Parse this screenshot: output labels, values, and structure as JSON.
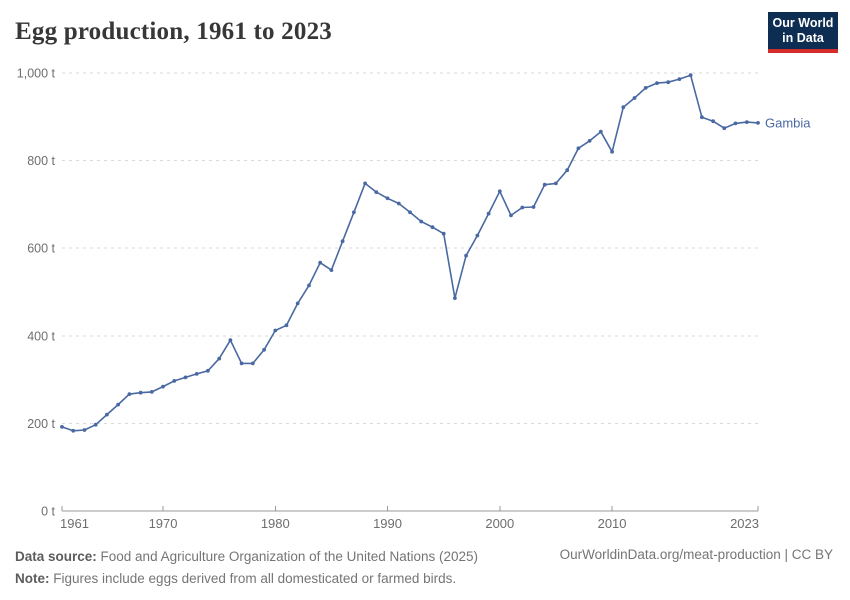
{
  "header": {
    "title": "Egg production, 1961 to 2023",
    "logo": {
      "line1": "Our World",
      "line2": "in Data"
    }
  },
  "chart_data": {
    "type": "line",
    "title": "Egg production, 1961 to 2023",
    "unit": "t",
    "xlim": [
      1961,
      2023
    ],
    "ylim": [
      0,
      1000
    ],
    "yticks": [
      0,
      200,
      400,
      600,
      800,
      1000
    ],
    "ytick_labels": [
      "0 t",
      "200 t",
      "400 t",
      "600 t",
      "800 t",
      "1,000 t"
    ],
    "xticks": [
      1961,
      1970,
      1980,
      1990,
      2000,
      2010,
      2023
    ],
    "xtick_labels": [
      "1961",
      "1970",
      "1980",
      "1990",
      "2000",
      "2010",
      "2023"
    ],
    "grid": "horizontal-dashed",
    "legend_position": "end-of-line-label",
    "x": [
      1961,
      1962,
      1963,
      1964,
      1965,
      1966,
      1967,
      1968,
      1969,
      1970,
      1971,
      1972,
      1973,
      1974,
      1975,
      1976,
      1977,
      1978,
      1979,
      1980,
      1981,
      1982,
      1983,
      1984,
      1985,
      1986,
      1987,
      1988,
      1989,
      1990,
      1991,
      1992,
      1993,
      1994,
      1995,
      1996,
      1997,
      1998,
      1999,
      2000,
      2001,
      2002,
      2003,
      2004,
      2005,
      2006,
      2007,
      2008,
      2009,
      2010,
      2011,
      2012,
      2013,
      2014,
      2015,
      2016,
      2017,
      2018,
      2019,
      2020,
      2021,
      2022,
      2023
    ],
    "series": [
      {
        "name": "Gambia",
        "color": "#4a69a2",
        "values": [
          192,
          183,
          185,
          197,
          220,
          243,
          267,
          270,
          272,
          284,
          297,
          305,
          313,
          320,
          348,
          390,
          337,
          337,
          368,
          412,
          424,
          474,
          515,
          567,
          550,
          616,
          682,
          748,
          728,
          714,
          702,
          682,
          661,
          648,
          633,
          486,
          583,
          629,
          679,
          730,
          675,
          693,
          694,
          745,
          748,
          778,
          828,
          845,
          866,
          820,
          922,
          943,
          966,
          977,
          979,
          986,
          995,
          899,
          890,
          874,
          885,
          888,
          886
        ]
      }
    ]
  },
  "footer": {
    "source_label": "Data source:",
    "source_text": " Food and Agriculture Organization of the United Nations (2025)",
    "note_label": "Note:",
    "note_text": " Figures include eggs derived from all domesticated or farmed birds.",
    "link_text": "OurWorldinData.org/meat-production | CC BY"
  },
  "colors": {
    "line": "#4a69a2",
    "grid": "#dadada",
    "axis": "#9a9a9a",
    "tick_label": "#6e6e6e",
    "title": "#373737",
    "footer": "#757575",
    "logo_bg": "#0d2d52",
    "logo_red": "#d42b2b"
  }
}
